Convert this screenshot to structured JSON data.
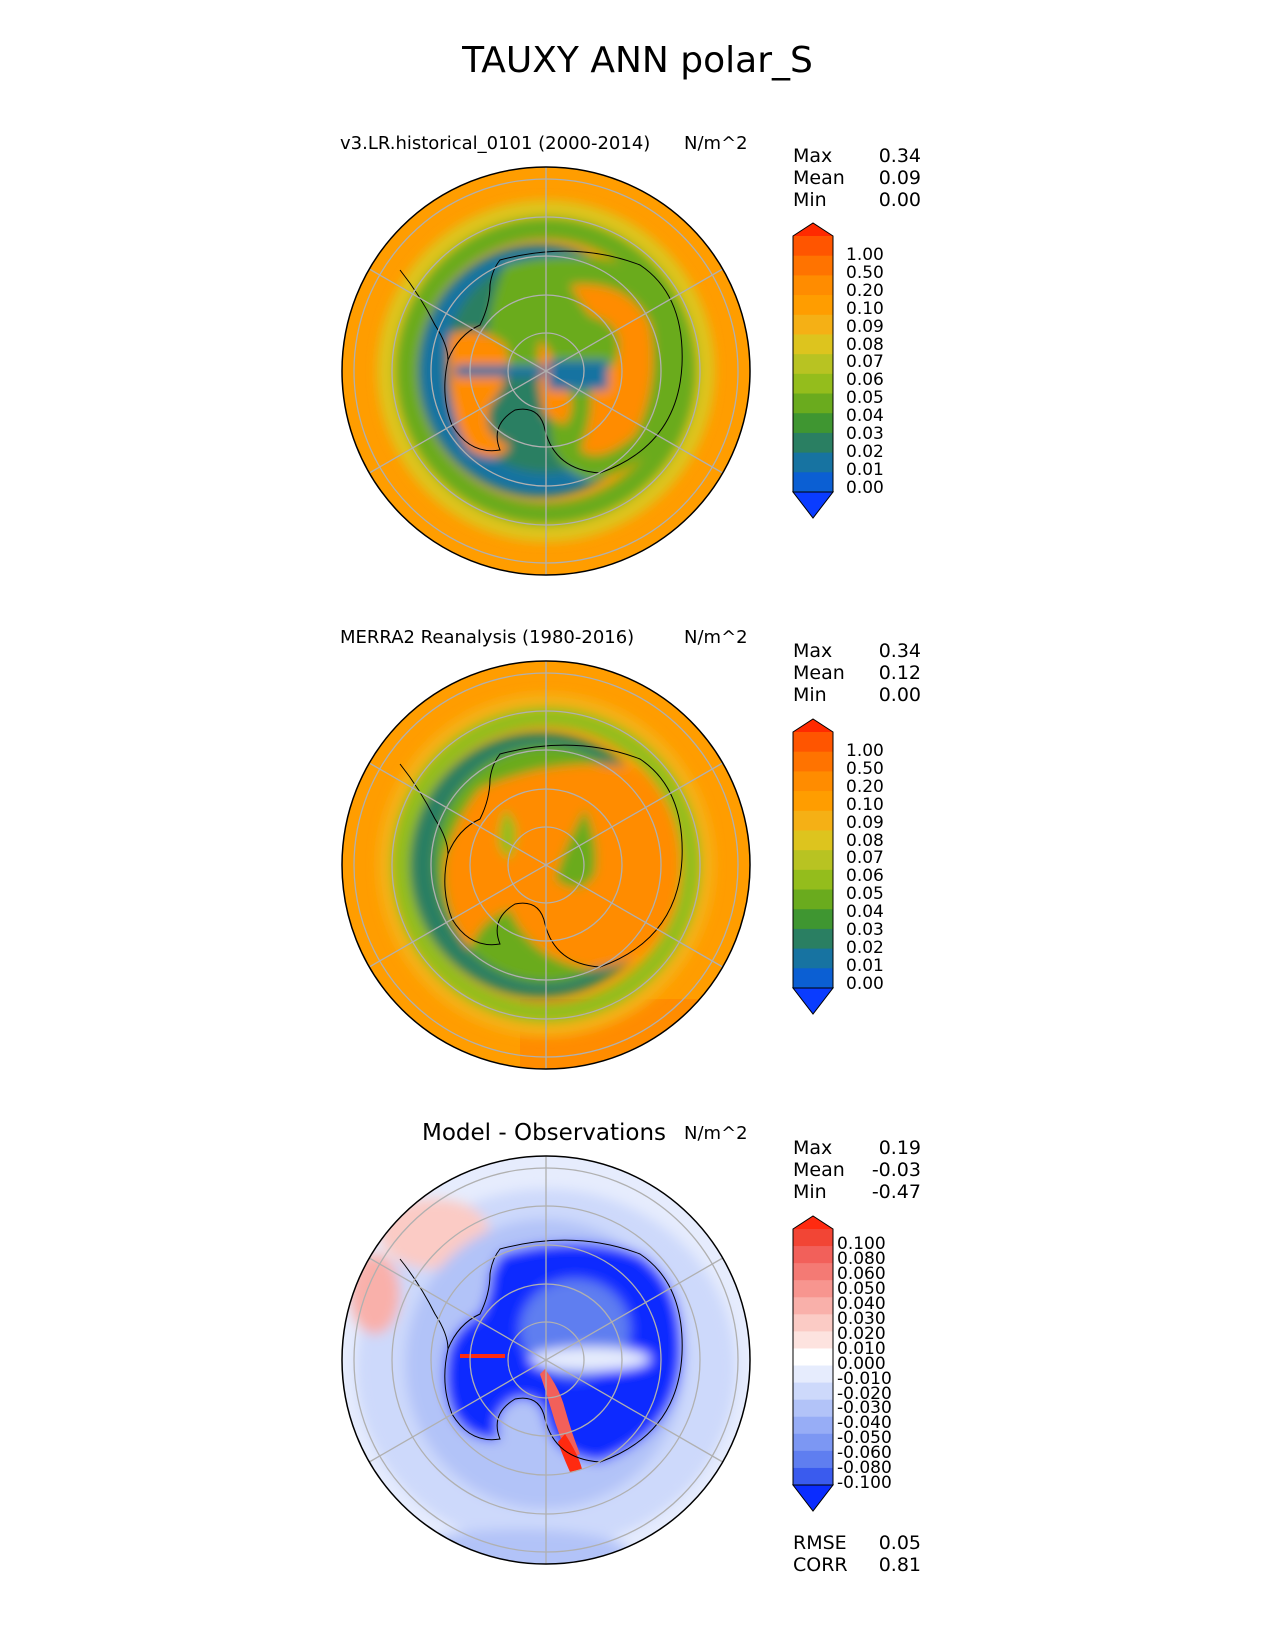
{
  "figure_title": "TAUXY ANN polar_S",
  "panels": [
    {
      "title": "v3.LR.historical_0101 (2000-2014)",
      "units": "N/m^2",
      "stats": [
        {
          "label": "Max",
          "value": "0.34"
        },
        {
          "label": "Mean",
          "value": "0.09"
        },
        {
          "label": "Min",
          "value": "0.00"
        }
      ],
      "colorbar_labels": [
        "1.00",
        "0.50",
        "0.20",
        "0.10",
        "0.09",
        "0.08",
        "0.07",
        "0.06",
        "0.05",
        "0.04",
        "0.03",
        "0.02",
        "0.01",
        "0.00"
      ]
    },
    {
      "title": "MERRA2 Reanalysis (1980-2016)",
      "units": "N/m^2",
      "stats": [
        {
          "label": "Max",
          "value": "0.34"
        },
        {
          "label": "Mean",
          "value": "0.12"
        },
        {
          "label": "Min",
          "value": "0.00"
        }
      ],
      "colorbar_labels": [
        "1.00",
        "0.50",
        "0.20",
        "0.10",
        "0.09",
        "0.08",
        "0.07",
        "0.06",
        "0.05",
        "0.04",
        "0.03",
        "0.02",
        "0.01",
        "0.00"
      ]
    },
    {
      "title": "Model - Observations",
      "units": "N/m^2",
      "stats": [
        {
          "label": "Max",
          "value": "0.19"
        },
        {
          "label": "Mean",
          "value": "-0.03"
        },
        {
          "label": "Min",
          "value": "-0.47"
        }
      ],
      "colorbar_labels": [
        "0.100",
        "0.080",
        "0.060",
        "0.050",
        "0.040",
        "0.030",
        "0.020",
        "0.010",
        "0.000",
        "-0.010",
        "-0.020",
        "-0.030",
        "-0.040",
        "-0.050",
        "-0.060",
        "-0.080",
        "-0.100"
      ],
      "extra_stats": [
        {
          "label": "RMSE",
          "value": "0.05"
        },
        {
          "label": "CORR",
          "value": "0.81"
        }
      ]
    }
  ],
  "colors": {
    "field_scale": [
      "#ff2a00",
      "#ff5500",
      "#ff7300",
      "#ff8c00",
      "#ff9d00",
      "#f5b015",
      "#ddc41e",
      "#b8c322",
      "#94bd1c",
      "#6aab1e",
      "#3f9631",
      "#2a7f62",
      "#1773a1",
      "#0b5fd3",
      "#0a3cff"
    ],
    "diff_scale": [
      "#ff2a10",
      "#f24535",
      "#f2605a",
      "#f47a74",
      "#f7958f",
      "#f9b0aa",
      "#fbcbc5",
      "#fde3df",
      "#ffffff",
      "#e6ecfd",
      "#cdd9fb",
      "#b2c3f8",
      "#97adf6",
      "#7c97f3",
      "#5f7ef0",
      "#3a5bee",
      "#0a2cff"
    ],
    "land_outline": "#000000",
    "grid": "#b0b0b0"
  },
  "chart_data": [
    {
      "type": "heatmap",
      "projection": "south polar stereographic",
      "title": "v3.LR.historical_0101 (2000-2014)",
      "units": "N/m^2",
      "stats": {
        "max": 0.34,
        "mean": 0.09,
        "min": 0.0
      },
      "levels": [
        0.0,
        0.01,
        0.02,
        0.03,
        0.04,
        0.05,
        0.06,
        0.07,
        0.08,
        0.09,
        0.1,
        0.2,
        0.5,
        1.0
      ],
      "colorbar_extend": "both"
    },
    {
      "type": "heatmap",
      "projection": "south polar stereographic",
      "title": "MERRA2 Reanalysis (1980-2016)",
      "units": "N/m^2",
      "stats": {
        "max": 0.34,
        "mean": 0.12,
        "min": 0.0
      },
      "levels": [
        0.0,
        0.01,
        0.02,
        0.03,
        0.04,
        0.05,
        0.06,
        0.07,
        0.08,
        0.09,
        0.1,
        0.2,
        0.5,
        1.0
      ],
      "colorbar_extend": "both"
    },
    {
      "type": "heatmap",
      "projection": "south polar stereographic",
      "title": "Model - Observations",
      "units": "N/m^2",
      "stats": {
        "max": 0.19,
        "mean": -0.03,
        "min": -0.47,
        "rmse": 0.05,
        "corr": 0.81
      },
      "levels": [
        -0.1,
        -0.08,
        -0.06,
        -0.05,
        -0.04,
        -0.03,
        -0.02,
        -0.01,
        0.0,
        0.01,
        0.02,
        0.03,
        0.04,
        0.05,
        0.06,
        0.08,
        0.1
      ],
      "colorbar_extend": "both"
    }
  ]
}
